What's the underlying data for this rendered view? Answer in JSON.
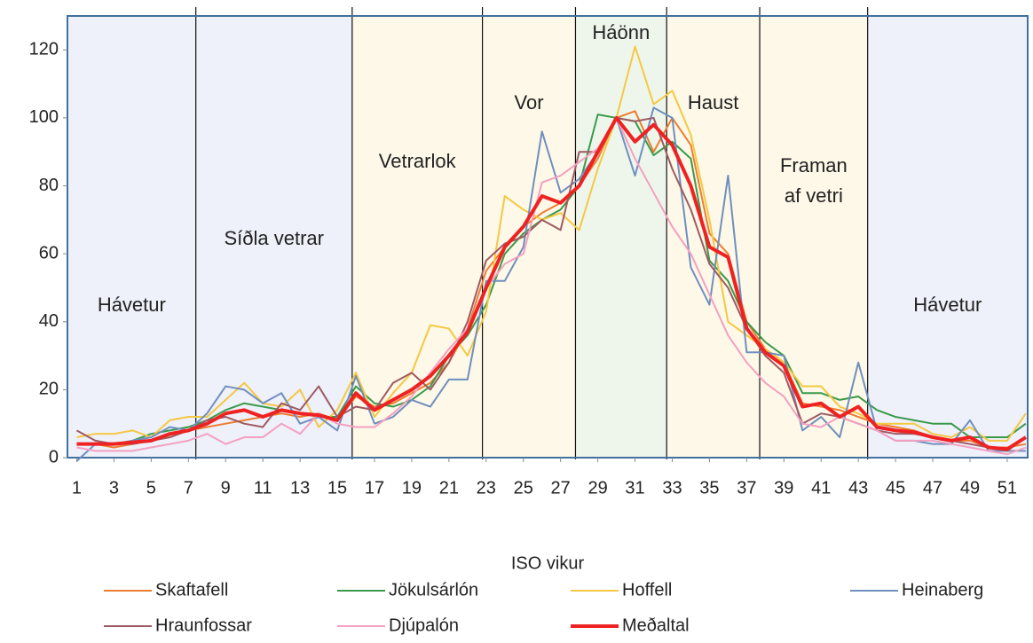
{
  "chart_data": {
    "type": "line",
    "x_label": "ISO vikur",
    "x": [
      1,
      2,
      3,
      4,
      5,
      6,
      7,
      8,
      9,
      10,
      11,
      12,
      13,
      14,
      15,
      16,
      17,
      18,
      19,
      20,
      21,
      22,
      23,
      24,
      25,
      26,
      27,
      28,
      29,
      30,
      31,
      32,
      33,
      34,
      35,
      36,
      37,
      38,
      39,
      40,
      41,
      42,
      43,
      44,
      45,
      46,
      47,
      48,
      49,
      50,
      51,
      52
    ],
    "xlim": [
      0.5,
      52.1
    ],
    "xticks": [
      1,
      3,
      5,
      7,
      9,
      11,
      13,
      15,
      17,
      19,
      21,
      23,
      25,
      27,
      29,
      31,
      33,
      35,
      37,
      39,
      41,
      43,
      45,
      47,
      49,
      51
    ],
    "ylim": [
      0,
      130
    ],
    "yticks": [
      0,
      20,
      40,
      60,
      80,
      100,
      120
    ],
    "regions": [
      {
        "label": [
          "Hávetur"
        ],
        "start": 0.5,
        "end": 7.4,
        "color": "#eef0fa"
      },
      {
        "label": [
          "Síðla vetrar"
        ],
        "start": 7.4,
        "end": 15.8,
        "color": "#eef0fa"
      },
      {
        "label": [
          "Vetrarlok"
        ],
        "start": 15.8,
        "end": 22.8,
        "color": "#fdf8e8"
      },
      {
        "label": [
          "Vor"
        ],
        "start": 22.8,
        "end": 27.8,
        "color": "#fdf8e8"
      },
      {
        "label": [
          "Háönn"
        ],
        "start": 27.8,
        "end": 32.7,
        "color": "#eef6ec"
      },
      {
        "label": [
          "Haust"
        ],
        "start": 32.7,
        "end": 37.7,
        "color": "#fdf8e8"
      },
      {
        "label": [
          "Framan",
          "af vetri"
        ],
        "start": 37.7,
        "end": 43.5,
        "color": "#fdf8e8"
      },
      {
        "label": [
          "Hávetur"
        ],
        "start": 43.5,
        "end": 52.1,
        "color": "#eef0fa"
      }
    ],
    "series": [
      {
        "name": "Skaftafell",
        "color": "#ed7d31",
        "width": 2,
        "values": [
          4,
          4,
          3,
          4,
          5,
          6,
          8,
          9,
          10,
          11,
          12,
          13,
          12,
          13,
          11,
          18,
          15,
          16,
          19,
          22,
          28,
          38,
          55,
          62,
          68,
          72,
          75,
          80,
          88,
          100,
          102,
          90,
          100,
          92,
          66,
          60,
          40,
          32,
          28,
          16,
          15,
          14,
          12,
          10,
          9,
          8,
          6,
          5,
          5,
          3,
          3,
          4
        ]
      },
      {
        "name": "Jökulsárlón",
        "color": "#3a9a4a",
        "width": 2,
        "values": [
          4,
          4,
          4,
          5,
          7,
          8,
          9,
          11,
          14,
          16,
          15,
          14,
          13,
          12,
          12,
          21,
          16,
          15,
          17,
          21,
          30,
          36,
          45,
          60,
          66,
          70,
          73,
          80,
          101,
          100,
          99,
          89,
          93,
          88,
          58,
          52,
          40,
          34,
          30,
          19,
          19,
          17,
          18,
          14,
          12,
          11,
          10,
          10,
          6,
          6,
          6,
          10
        ]
      },
      {
        "name": "Hoffell",
        "color": "#f5c842",
        "width": 2,
        "values": [
          6,
          7,
          7,
          8,
          6,
          11,
          12,
          12,
          17,
          22,
          16,
          15,
          20,
          9,
          14,
          25,
          12,
          19,
          25,
          39,
          38,
          30,
          43,
          77,
          73,
          70,
          72,
          67,
          85,
          100,
          121,
          104,
          108,
          95,
          70,
          40,
          36,
          32,
          28,
          21,
          21,
          15,
          13,
          10,
          10,
          10,
          7,
          6,
          9,
          5,
          5,
          13
        ]
      },
      {
        "name": "Heinaberg",
        "color": "#6f8fbf",
        "width": 2,
        "values": [
          -1,
          4,
          4,
          5,
          6,
          9,
          8,
          13,
          21,
          20,
          16,
          19,
          10,
          12,
          8,
          24,
          10,
          12,
          17,
          15,
          23,
          23,
          52,
          52,
          62,
          96,
          78,
          82,
          90,
          100,
          83,
          103,
          100,
          56,
          45,
          83,
          31,
          31,
          30,
          8,
          12,
          6,
          28,
          8,
          5,
          5,
          4,
          4,
          11,
          2,
          2,
          2
        ]
      },
      {
        "name": "Hraunfossar",
        "color": "#9e5a63",
        "width": 2,
        "values": [
          8,
          5,
          4,
          4,
          5,
          6,
          8,
          11,
          12,
          10,
          9,
          16,
          14,
          21,
          12,
          15,
          14,
          22,
          25,
          20,
          28,
          40,
          58,
          63,
          65,
          70,
          67,
          90,
          90,
          100,
          99,
          100,
          85,
          73,
          57,
          50,
          38,
          30,
          25,
          10,
          13,
          12,
          10,
          8,
          7,
          7,
          6,
          5,
          4,
          3,
          2,
          6
        ]
      },
      {
        "name": "Djúpalón",
        "color": "#f4a0c0",
        "width": 2,
        "values": [
          3,
          2,
          2,
          2,
          3,
          4,
          5,
          7,
          4,
          6,
          6,
          10,
          7,
          13,
          10,
          9,
          9,
          13,
          18,
          25,
          32,
          38,
          50,
          57,
          60,
          81,
          83,
          87,
          91,
          100,
          88,
          78,
          68,
          60,
          48,
          36,
          28,
          22,
          18,
          10,
          9,
          12,
          10,
          8,
          5,
          5,
          5,
          4,
          3,
          2,
          1,
          3
        ]
      },
      {
        "name": "Meðaltal",
        "color": "#ee2222",
        "width": 4,
        "values": [
          4,
          4,
          4,
          4.5,
          5,
          7,
          8,
          10,
          13,
          14,
          12,
          14,
          13,
          12.5,
          11,
          19,
          14,
          17,
          20,
          24,
          30,
          37,
          50,
          62,
          68,
          77,
          75,
          80,
          90,
          100,
          93,
          98,
          92,
          80,
          62,
          59,
          38,
          31,
          27,
          15,
          16,
          12,
          15,
          9,
          8,
          7.5,
          6,
          5,
          6,
          3,
          2.5,
          6
        ]
      }
    ]
  }
}
